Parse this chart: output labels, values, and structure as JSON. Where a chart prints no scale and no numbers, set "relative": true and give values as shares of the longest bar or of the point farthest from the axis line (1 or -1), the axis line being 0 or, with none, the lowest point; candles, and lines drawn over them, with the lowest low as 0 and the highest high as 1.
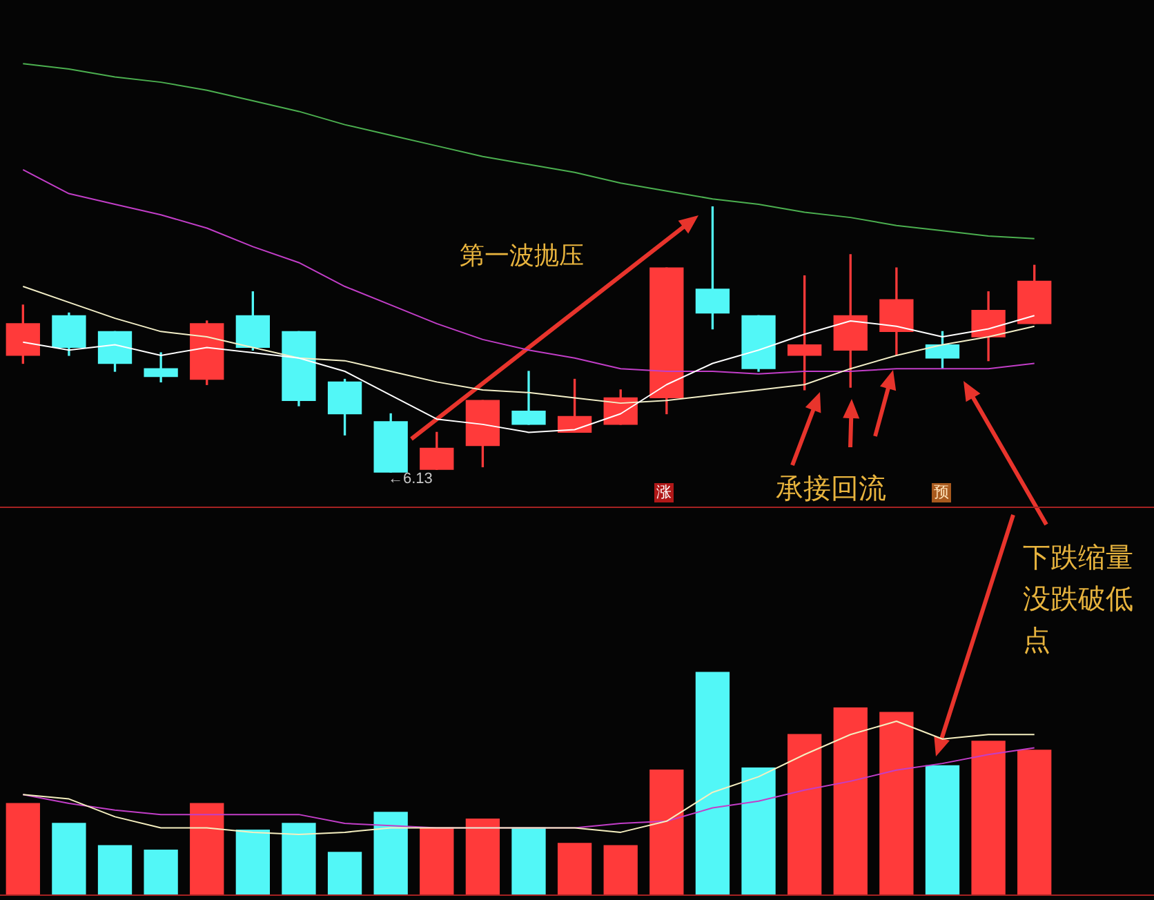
{
  "chart_data": [
    {
      "type": "candlestick",
      "categories": [
        null,
        null,
        null,
        null,
        null,
        null,
        null,
        null,
        null,
        null,
        null,
        null,
        null,
        null,
        null,
        null,
        null,
        null,
        null,
        null,
        null,
        null,
        null
      ],
      "ohlc": [
        [
          0.44,
          0.63,
          0.41,
          0.56
        ],
        [
          0.59,
          0.6,
          0.44,
          0.47
        ],
        [
          0.53,
          0.53,
          0.38,
          0.41
        ],
        [
          0.39,
          0.45,
          0.34,
          0.36
        ],
        [
          0.35,
          0.57,
          0.33,
          0.56
        ],
        [
          0.59,
          0.68,
          0.46,
          0.47
        ],
        [
          0.53,
          0.53,
          0.25,
          0.27
        ],
        [
          0.34,
          0.35,
          0.14,
          0.22
        ],
        [
          0.19,
          0.22,
          0,
          0
        ],
        [
          0.01,
          0.15,
          0.01,
          0.09
        ],
        [
          0.1,
          0.27,
          0.02,
          0.27
        ],
        [
          0.23,
          0.38,
          0.18,
          0.18
        ],
        [
          0.15,
          0.35,
          0.15,
          0.21
        ],
        [
          0.18,
          0.31,
          0.18,
          0.28
        ],
        [
          0.28,
          0.77,
          0.22,
          0.77
        ],
        [
          0.69,
          1,
          0.54,
          0.6
        ],
        [
          0.59,
          0.59,
          0.38,
          0.39
        ],
        [
          0.44,
          0.74,
          0.31,
          0.48
        ],
        [
          0.46,
          0.82,
          0.32,
          0.59
        ],
        [
          0.53,
          0.77,
          0.44,
          0.65
        ],
        [
          0.48,
          0.53,
          0.39,
          0.43
        ],
        [
          0.51,
          0.68,
          0.42,
          0.61
        ],
        [
          0.56,
          0.78,
          0.56,
          0.72
        ]
      ],
      "colors": [
        "#ff3a3a",
        "#52f7f7",
        "#52f7f7",
        "#52f7f7",
        "#ff3a3a",
        "#52f7f7",
        "#52f7f7",
        "#52f7f7",
        "#52f7f7",
        "#ff3a3a",
        "#ff3a3a",
        "#52f7f7",
        "#ff3a3a",
        "#ff3a3a",
        "#ff3a3a",
        "#52f7f7",
        "#52f7f7",
        "#ff3a3a",
        "#ff3a3a",
        "#ff3a3a",
        "#52f7f7",
        "#ff3a3a",
        "#ff3a3a"
      ],
      "series": [
        {
          "type": "line",
          "color": "#ffffff",
          "values": [
            0.49,
            0.46,
            0.48,
            0.44,
            0.47,
            0.45,
            0.43,
            0.38,
            0.29,
            0.2,
            0.18,
            0.15,
            0.16,
            0.22,
            0.33,
            0.41,
            0.46,
            0.52,
            0.57,
            0.55,
            0.51,
            0.54,
            0.59
          ]
        },
        {
          "type": "line",
          "color": "#f3efc8",
          "values": [
            0.7,
            0.64,
            0.58,
            0.53,
            0.51,
            0.47,
            0.43,
            0.42,
            0.38,
            0.34,
            0.31,
            0.3,
            0.28,
            0.26,
            0.27,
            0.29,
            0.31,
            0.33,
            0.39,
            0.44,
            0.48,
            0.51,
            0.55
          ]
        },
        {
          "type": "line",
          "color": "#c23ec8",
          "values": [
            1.14,
            1.05,
            1.01,
            0.97,
            0.92,
            0.85,
            0.79,
            0.7,
            0.63,
            0.56,
            0.5,
            0.46,
            0.43,
            0.39,
            0.38,
            0.38,
            0.37,
            0.38,
            0.38,
            0.39,
            0.39,
            0.39,
            0.41
          ]
        },
        {
          "type": "line",
          "color": "#4cb050",
          "values": [
            1.54,
            1.52,
            1.49,
            1.47,
            1.44,
            1.4,
            1.36,
            1.31,
            1.27,
            1.23,
            1.19,
            1.16,
            1.13,
            1.09,
            1.06,
            1.03,
            1.01,
            0.98,
            0.96,
            0.93,
            0.91,
            0.89,
            0.88
          ]
        }
      ],
      "relative": true,
      "annotations": [
        "第一波抛压",
        "承接回流",
        "涨",
        "预",
        {
          "text": "←6.13",
          "y": 0
        }
      ]
    },
    {
      "type": "bar",
      "categories": [
        null,
        null,
        null,
        null,
        null,
        null,
        null,
        null,
        null,
        null,
        null,
        null,
        null,
        null,
        null,
        null,
        null,
        null,
        null,
        null,
        null,
        null,
        null
      ],
      "series": [
        {
          "colors": [
            "#ff3a3a",
            "#52f7f7",
            "#52f7f7",
            "#52f7f7",
            "#ff3a3a",
            "#52f7f7",
            "#52f7f7",
            "#52f7f7",
            "#52f7f7",
            "#ff3a3a",
            "#ff3a3a",
            "#52f7f7",
            "#ff3a3a",
            "#ff3a3a",
            "#ff3a3a",
            "#52f7f7",
            "#52f7f7",
            "#ff3a3a",
            "#ff3a3a",
            "#ff3a3a",
            "#52f7f7",
            "#ff3a3a",
            "#ff3a3a"
          ],
          "values": [
            0.41,
            0.32,
            0.22,
            0.2,
            0.41,
            0.29,
            0.32,
            0.19,
            0.37,
            0.3,
            0.34,
            0.3,
            0.23,
            0.22,
            0.56,
            1,
            0.57,
            0.72,
            0.84,
            0.82,
            0.58,
            0.69,
            0.65
          ]
        },
        {
          "type": "line",
          "color": "#f5efc0",
          "values": [
            0.45,
            0.43,
            0.35,
            0.3,
            0.3,
            0.28,
            0.27,
            0.28,
            0.3,
            0.3,
            0.3,
            0.3,
            0.3,
            0.28,
            0.33,
            0.46,
            0.53,
            0.63,
            0.72,
            0.78,
            0.7,
            0.72,
            0.72
          ]
        },
        {
          "type": "line",
          "color": "#c23ec8",
          "values": [
            0.45,
            0.41,
            0.38,
            0.36,
            0.36,
            0.36,
            0.36,
            0.32,
            0.31,
            0.3,
            0.3,
            0.3,
            0.3,
            0.32,
            0.33,
            0.39,
            0.42,
            0.47,
            0.51,
            0.56,
            0.59,
            0.63,
            0.66
          ]
        }
      ],
      "relative": true,
      "annotations": [
        "下跌缩量没跌破低点"
      ]
    }
  ]
}
